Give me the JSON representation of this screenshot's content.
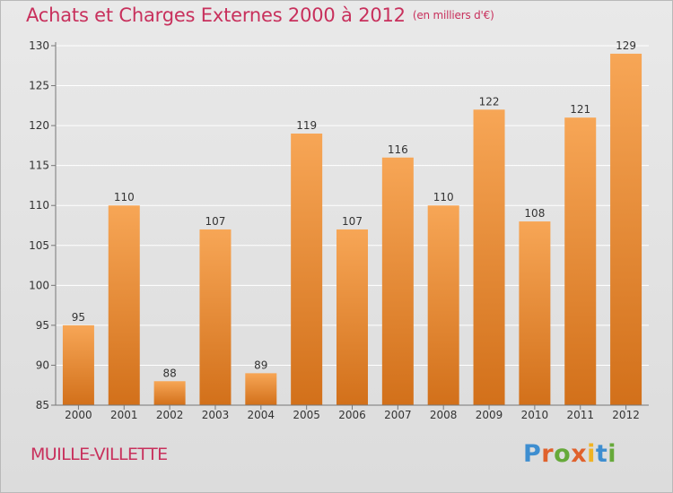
{
  "title": "Achats et Charges Externes 2000 à 2012",
  "unit_note": "(en milliers d'€)",
  "commune": "MUILLE-VILLETTE",
  "logo": {
    "text": "Proxiti",
    "letter_colors": [
      "#3e8ed0",
      "#e0612c",
      "#66a93a",
      "#e0612c",
      "#f0b323",
      "#3e8ed0",
      "#66a93a"
    ]
  },
  "colors": {
    "bar_light": "#f7a656",
    "bar_dark": "#d2701a",
    "title": "#c8305c",
    "gridline": "#ffffff",
    "axis_text": "#333333"
  },
  "chart_data": {
    "type": "bar",
    "categories": [
      "2000",
      "2001",
      "2002",
      "2003",
      "2004",
      "2005",
      "2006",
      "2007",
      "2008",
      "2009",
      "2010",
      "2011",
      "2012"
    ],
    "values": [
      95,
      110,
      88,
      107,
      89,
      119,
      107,
      116,
      110,
      122,
      108,
      121,
      129
    ],
    "ylim": [
      85,
      130
    ],
    "yticks": [
      85,
      90,
      95,
      100,
      105,
      110,
      115,
      120,
      125,
      130
    ],
    "grid": true,
    "xlabel": "",
    "ylabel": ""
  }
}
